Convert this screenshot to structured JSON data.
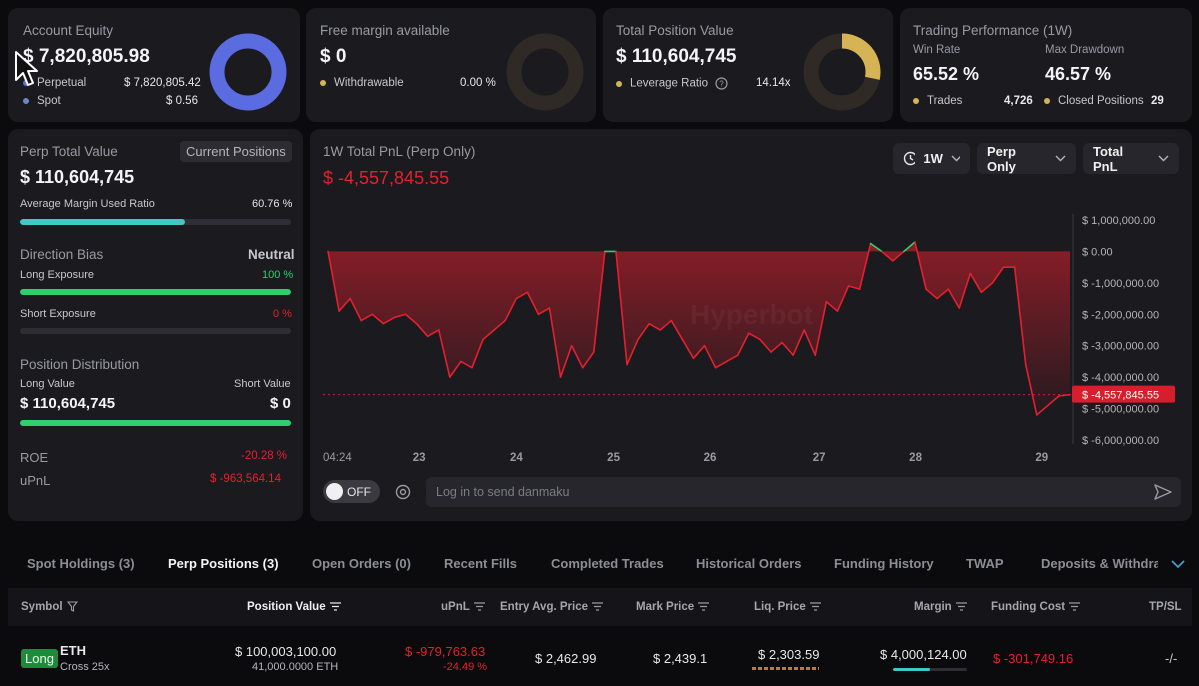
{
  "summary": {
    "account_equity": {
      "label": "Account Equity",
      "value": "$ 7,820,805.98",
      "perpetual_label": "Perpetual",
      "perpetual_value": "$ 7,820,805.42",
      "spot_label": "Spot",
      "spot_value": "$ 0.56"
    },
    "free_margin": {
      "label": "Free margin available",
      "value": "$ 0",
      "withdrawable_label": "Withdrawable",
      "withdrawable_value": "0.00 %"
    },
    "total_position": {
      "label": "Total Position Value",
      "value": "$ 110,604,745",
      "leverage_label": "Leverage Ratio",
      "leverage_value": "14.14x"
    },
    "performance": {
      "label": "Trading Performance (1W)",
      "win_rate_label": "Win Rate",
      "win_rate_value": "65.52 %",
      "max_drawdown_label": "Max Drawdown",
      "max_drawdown_value": "46.57 %",
      "trades_label": "Trades",
      "trades_value": "4,726",
      "closed_label": "Closed Positions",
      "closed_value": "29"
    }
  },
  "perp": {
    "title": "Perp Total Value",
    "badge": "Current Positions",
    "value": "$ 110,604,745",
    "margin_label": "Average Margin Used Ratio",
    "margin_value": "60.76 %",
    "margin_fraction": 0.6076,
    "bias_label": "Direction Bias",
    "bias_value": "Neutral",
    "long_exposure_label": "Long Exposure",
    "long_exposure_value": "100 %",
    "long_fraction": 1.0,
    "short_exposure_label": "Short Exposure",
    "short_exposure_value": "0 %",
    "short_fraction": 0,
    "distribution_label": "Position Distribution",
    "long_value_label": "Long Value",
    "long_value": "$ 110,604,745",
    "short_value_label": "Short Value",
    "short_value": "$ 0",
    "roe_label": "ROE",
    "roe_value": "-20.28 %",
    "upnl_label": "uPnL",
    "upnl_value": "$ -963,564.14"
  },
  "pnl_chart": {
    "title": "1W Total PnL (Perp Only)",
    "value": "$ -4,557,845.55",
    "range_dropdown": "1W",
    "scope_dropdown": "Perp Only",
    "metric_dropdown": "Total PnL",
    "watermark": "Hyperbot",
    "toggle_label": "OFF",
    "danmaku_placeholder": "Log in to send danmaku",
    "current_label": "$ -4,557,845.55"
  },
  "chart_data": {
    "type": "area",
    "title": "1W Total PnL (Perp Only)",
    "x_ticks": [
      "04:24",
      "23",
      "24",
      "25",
      "26",
      "27",
      "28",
      "29"
    ],
    "y_ticks": [
      "$ 1,000,000.00",
      "$ 0.00",
      "$ -1,000,000.00",
      "$ -2,000,000.00",
      "$ -3,000,000.00",
      "$ -4,000,000.00",
      "$ -5,000,000.00",
      "$ -6,000,000.00"
    ],
    "y_values": [
      1000000,
      0,
      -1000000,
      -2000000,
      -3000000,
      -4000000,
      -5000000,
      -6000000
    ],
    "ylim": [
      -6000000,
      1000000
    ],
    "series": [
      {
        "values": [
          0,
          -1900000,
          -1500000,
          -2200000,
          -2000000,
          -2300000,
          -2100000,
          -2000000,
          -2300000,
          -2700000,
          -2500000,
          -4000000,
          -3500000,
          -3700000,
          -2800000,
          -2500000,
          -2200000,
          -1500000,
          -1300000,
          -2000000,
          -1800000,
          -4000000,
          -3000000,
          -3700000,
          -3200000,
          0,
          0,
          -3600000,
          -2800000,
          -2300000,
          -2500000,
          -2200000,
          -2800000,
          -3400000,
          -3000000,
          -3700000,
          -3500000,
          -3300000,
          -2600000,
          -2800000,
          -3200000,
          -2900000,
          -3300000,
          -2500000,
          -3300000,
          -1600000,
          -1900000,
          -1100000,
          -1200000,
          250000,
          0,
          -300000,
          0,
          300000,
          -1200000,
          -1500000,
          -1200000,
          -1800000,
          -700000,
          -1300000,
          -1000000,
          -500000,
          -500000,
          -3600000,
          -5200000,
          -4900000,
          -4600000,
          -4557845.55
        ]
      }
    ]
  },
  "tabs": [
    "Spot Holdings (3)",
    "Perp Positions (3)",
    "Open Orders (0)",
    "Recent Fills",
    "Completed Trades",
    "Historical Orders",
    "Funding History",
    "TWAP",
    "Deposits & Withdrav"
  ],
  "table": {
    "headers": [
      "Symbol",
      "Position Value",
      "uPnL",
      "Entry Avg. Price",
      "Mark Price",
      "Liq. Price",
      "Margin",
      "Funding Cost",
      "TP/SL"
    ],
    "rows": [
      {
        "side": "Long",
        "symbol": "ETH",
        "leverage": "Cross 25x",
        "position_value": "$ 100,003,100.00",
        "position_size": "41,000.0000 ETH",
        "upnl": "$ -979,763.63",
        "upnl_pct": "-24.49 %",
        "entry_price": "$ 2,462.99",
        "mark_price": "$ 2,439.1",
        "liq_price": "$ 2,303.59",
        "margin": "$ 4,000,124.00",
        "margin_fraction": 0.5,
        "funding_cost": "$ -301,749.16",
        "tpsl": "-/-"
      }
    ]
  },
  "colors": {
    "red": "#e5202e",
    "green": "#2ed06e",
    "teal": "#3fc9c4",
    "donut_blue": "#5b6ce0",
    "donut_gold": "#d6b456"
  }
}
